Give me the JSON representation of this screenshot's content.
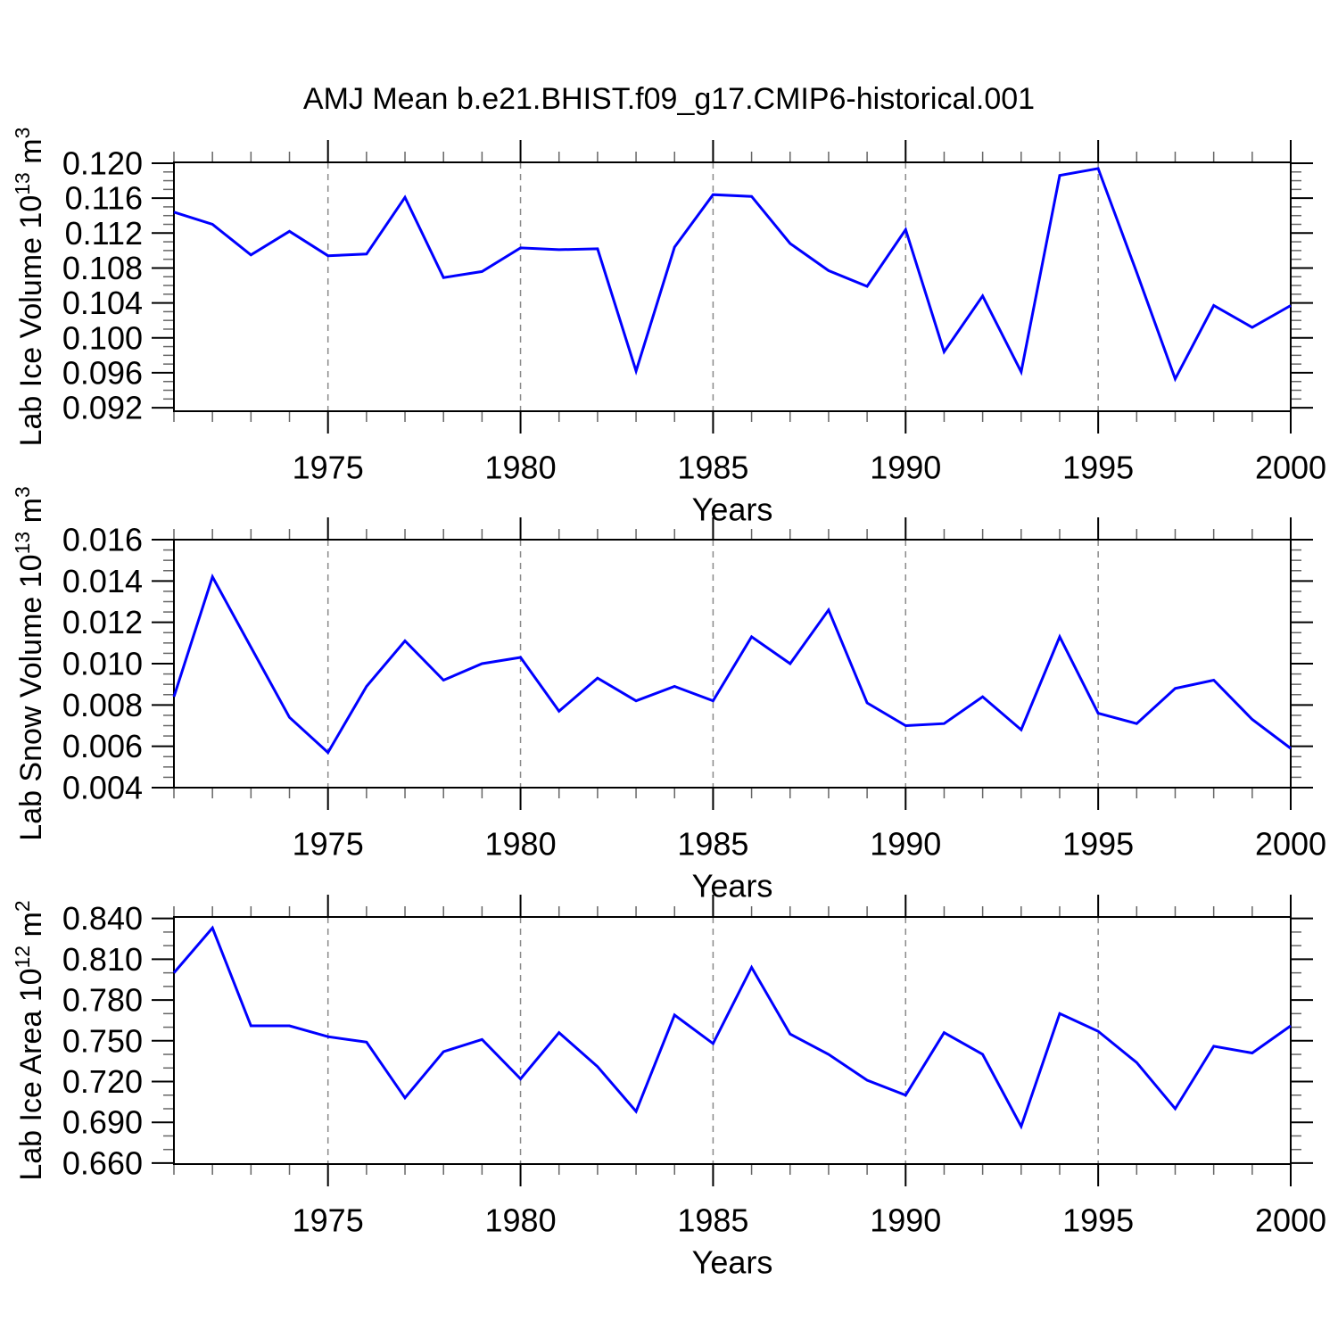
{
  "title": "AMJ Mean b.e21.BHIST.f09_g17.CMIP6-historical.001",
  "colors": {
    "background": "#ffffff",
    "line": "#0000ff",
    "axis": "#000000",
    "grid": "#8a8a8a",
    "minor_tick": "#666666",
    "text": "#000000"
  },
  "chart_data": [
    {
      "type": "line",
      "ylabel": "Lab Ice Volume 10¹³ m³",
      "ylabel_parts": [
        {
          "t": "Lab Ice Volume 10"
        },
        {
          "t": "13",
          "sup": true
        },
        {
          "t": " m"
        },
        {
          "t": "3",
          "sup": true
        }
      ],
      "xlabel": "Years",
      "x": [
        1971,
        1972,
        1973,
        1974,
        1975,
        1976,
        1977,
        1978,
        1979,
        1980,
        1981,
        1982,
        1983,
        1984,
        1985,
        1986,
        1987,
        1988,
        1989,
        1990,
        1991,
        1992,
        1993,
        1994,
        1995,
        1996,
        1997,
        1998,
        1999,
        2000
      ],
      "y": [
        0.1144,
        0.113,
        0.1095,
        0.1122,
        0.1094,
        0.1096,
        0.1161,
        0.1069,
        0.1076,
        0.1103,
        0.1101,
        0.1102,
        0.0962,
        0.1104,
        0.1164,
        0.1162,
        0.1108,
        0.1077,
        0.1059,
        0.1124,
        0.0984,
        0.1048,
        0.0961,
        0.1186,
        0.1194,
        0.1075,
        0.0953,
        0.1037,
        0.1012,
        0.1037
      ],
      "xlim": [
        1971,
        2000
      ],
      "ylim": [
        0.0916,
        0.1201
      ],
      "yticks": [
        0.092,
        0.096,
        0.1,
        0.104,
        0.108,
        0.112,
        0.116,
        0.12
      ],
      "ytick_labels": [
        "0.092",
        "0.096",
        "0.100",
        "0.104",
        "0.108",
        "0.112",
        "0.116",
        "0.120"
      ],
      "y_minor_step": 0.001,
      "xticks": [
        1975,
        1980,
        1985,
        1990,
        1995,
        2000
      ],
      "xtick_labels": [
        "1975",
        "1980",
        "1985",
        "1990",
        "1995",
        "2000"
      ],
      "grid_x": [
        1975,
        1980,
        1985,
        1990,
        1995
      ],
      "grid": true
    },
    {
      "type": "line",
      "ylabel": "Lab Snow Volume 10¹³ m³",
      "ylabel_parts": [
        {
          "t": "Lab Snow Volume 10"
        },
        {
          "t": "13",
          "sup": true
        },
        {
          "t": " m"
        },
        {
          "t": "3",
          "sup": true
        }
      ],
      "xlabel": "Years",
      "x": [
        1971,
        1972,
        1973,
        1974,
        1975,
        1976,
        1977,
        1978,
        1979,
        1980,
        1981,
        1982,
        1983,
        1984,
        1985,
        1986,
        1987,
        1988,
        1989,
        1990,
        1991,
        1992,
        1993,
        1994,
        1995,
        1996,
        1997,
        1998,
        1999,
        2000
      ],
      "y": [
        0.0084,
        0.0142,
        0.0108,
        0.0074,
        0.0057,
        0.0089,
        0.0111,
        0.0092,
        0.01,
        0.0103,
        0.0077,
        0.0093,
        0.0082,
        0.0089,
        0.0082,
        0.0113,
        0.01,
        0.0126,
        0.0081,
        0.007,
        0.0071,
        0.0084,
        0.0068,
        0.0113,
        0.0076,
        0.0071,
        0.0088,
        0.0092,
        0.0073,
        0.0059
      ],
      "xlim": [
        1971,
        2000
      ],
      "ylim": [
        0.004,
        0.016
      ],
      "yticks": [
        0.004,
        0.006,
        0.008,
        0.01,
        0.012,
        0.014,
        0.016
      ],
      "ytick_labels": [
        "0.004",
        "0.006",
        "0.008",
        "0.010",
        "0.012",
        "0.014",
        "0.016"
      ],
      "y_minor_step": 0.0005,
      "xticks": [
        1975,
        1980,
        1985,
        1990,
        1995,
        2000
      ],
      "xtick_labels": [
        "1975",
        "1980",
        "1985",
        "1990",
        "1995",
        "2000"
      ],
      "grid_x": [
        1975,
        1980,
        1985,
        1990,
        1995
      ],
      "grid": true
    },
    {
      "type": "line",
      "ylabel": "Lab Ice Area 10¹² m²",
      "ylabel_parts": [
        {
          "t": "Lab Ice Area 10"
        },
        {
          "t": "12",
          "sup": true
        },
        {
          "t": " m"
        },
        {
          "t": "2",
          "sup": true
        }
      ],
      "xlabel": "Years",
      "x": [
        1971,
        1972,
        1973,
        1974,
        1975,
        1976,
        1977,
        1978,
        1979,
        1980,
        1981,
        1982,
        1983,
        1984,
        1985,
        1986,
        1987,
        1988,
        1989,
        1990,
        1991,
        1992,
        1993,
        1994,
        1995,
        1996,
        1997,
        1998,
        1999,
        2000
      ],
      "y": [
        0.8,
        0.833,
        0.761,
        0.761,
        0.753,
        0.749,
        0.708,
        0.742,
        0.751,
        0.722,
        0.756,
        0.731,
        0.698,
        0.769,
        0.748,
        0.804,
        0.755,
        0.74,
        0.721,
        0.71,
        0.756,
        0.74,
        0.687,
        0.77,
        0.757,
        0.734,
        0.7,
        0.746,
        0.741,
        0.761
      ],
      "xlim": [
        1971,
        2000
      ],
      "ylim": [
        0.6593,
        0.8411
      ],
      "yticks": [
        0.66,
        0.69,
        0.72,
        0.75,
        0.78,
        0.81,
        0.84
      ],
      "ytick_labels": [
        "0.660",
        "0.690",
        "0.720",
        "0.750",
        "0.780",
        "0.810",
        "0.840"
      ],
      "y_minor_step": 0.01,
      "xticks": [
        1975,
        1980,
        1985,
        1990,
        1995,
        2000
      ],
      "xtick_labels": [
        "1975",
        "1980",
        "1985",
        "1990",
        "1995",
        "2000"
      ],
      "grid_x": [
        1975,
        1980,
        1985,
        1990,
        1995
      ],
      "grid": true
    }
  ]
}
